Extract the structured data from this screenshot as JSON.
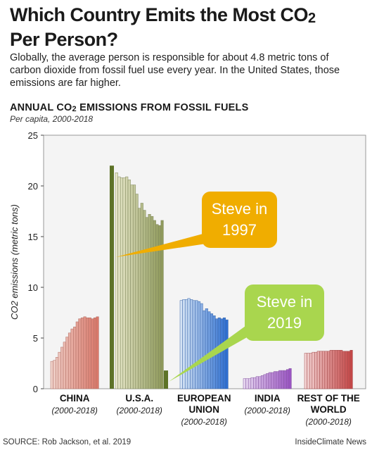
{
  "title_main": "Which Country Emits the Most CO",
  "title_sub": "2",
  "title_end": "Per Person?",
  "subtitle": "Globally, the average person is responsible for about 4.8 metric tons of carbon dioxide from fossil fuel use every year. In the United States, those emissions are far higher.",
  "chart_title_main": "ANNUAL CO",
  "chart_title_sub": "2",
  "chart_title_end": " EMISSIONS FROM FOSSIL FUELS",
  "chart_subtitle": "Per capita, 2000-2018",
  "source": "SOURCE: Rob Jackson, et al. 2019",
  "publisher": "InsideClimate News",
  "callouts": [
    {
      "text": "Steve in\n1997",
      "color": "#f0ad00",
      "value": 22
    },
    {
      "text": "Steve in\n2019",
      "color": "#a9d64e",
      "value": 1.8
    }
  ],
  "chart_data": {
    "type": "bar",
    "title": "ANNUAL CO2 EMISSIONS FROM FOSSIL FUELS",
    "subtitle": "Per capita, 2000-2018",
    "ylabel": "CO2 emissions (metric tons)",
    "ylim": [
      0,
      25
    ],
    "yticks": [
      0,
      5,
      10,
      15,
      20,
      25
    ],
    "groups": [
      {
        "label": [
          "CHINA"
        ],
        "years": "(2000-2018)",
        "colors": [
          "#f0d2ca",
          "#d9786a"
        ],
        "values": [
          2.7,
          2.8,
          3.1,
          3.6,
          4.1,
          4.6,
          5.1,
          5.5,
          5.9,
          6.1,
          6.6,
          6.9,
          7.0,
          7.1,
          7.0,
          7.0,
          6.9,
          7.0,
          7.1
        ]
      },
      {
        "label": [
          "U.S.A."
        ],
        "years": "(2000-2018)",
        "colors": [
          "#e6e6c8",
          "#8f9a5c"
        ],
        "values": [
          21.3,
          20.9,
          20.8,
          20.8,
          20.9,
          20.6,
          20.1,
          20.1,
          19.2,
          17.8,
          18.3,
          17.6,
          16.9,
          17.2,
          17.0,
          16.6,
          16.2,
          16.1,
          16.6
        ]
      },
      {
        "label": [
          "EUROPEAN",
          "UNION"
        ],
        "years": "(2000-2018)",
        "colors": [
          "#d6e4f4",
          "#2f6fd0"
        ],
        "values": [
          8.7,
          8.8,
          8.8,
          8.9,
          8.8,
          8.7,
          8.7,
          8.6,
          8.4,
          7.7,
          7.9,
          7.6,
          7.4,
          7.2,
          6.9,
          7.0,
          6.9,
          7.0,
          6.8
        ]
      },
      {
        "label": [
          "INDIA"
        ],
        "years": "(2000-2018)",
        "colors": [
          "#e6d6ef",
          "#9a55c2"
        ],
        "values": [
          1.0,
          1.0,
          1.0,
          1.1,
          1.1,
          1.2,
          1.2,
          1.3,
          1.4,
          1.5,
          1.6,
          1.6,
          1.7,
          1.7,
          1.8,
          1.8,
          1.8,
          1.9,
          2.0
        ]
      },
      {
        "label": [
          "REST OF THE",
          "WORLD"
        ],
        "years": "(2000-2018)",
        "colors": [
          "#f3d4d4",
          "#c44747"
        ],
        "values": [
          3.5,
          3.5,
          3.5,
          3.6,
          3.6,
          3.7,
          3.7,
          3.7,
          3.7,
          3.7,
          3.8,
          3.8,
          3.8,
          3.8,
          3.8,
          3.7,
          3.7,
          3.7,
          3.8
        ]
      }
    ],
    "highlight_bars": [
      {
        "label": "Steve in 1997",
        "value": 22,
        "color": "#5d7327"
      },
      {
        "label": "Steve in 2019",
        "value": 1.8,
        "color": "#5d7327"
      }
    ]
  }
}
